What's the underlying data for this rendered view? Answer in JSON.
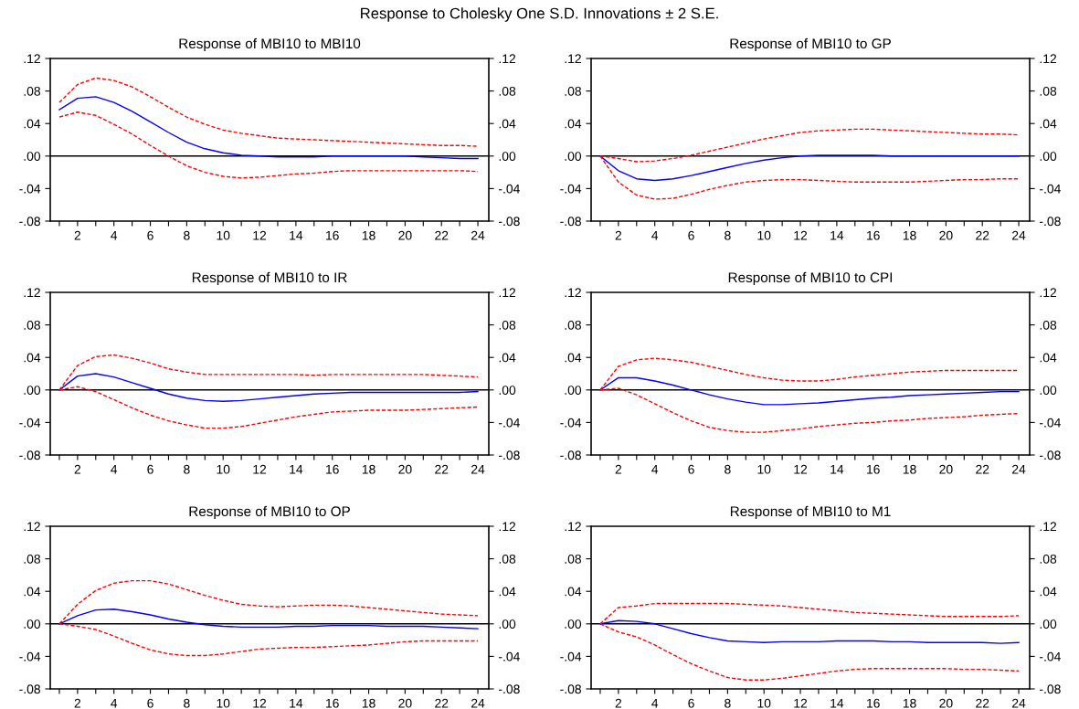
{
  "chart_data": [
    {
      "type": "line",
      "title": "Response of MBI10 to MBI10",
      "annotations": [
        "Response to Cholesky One S.D. Innovations ± 2 S.E."
      ],
      "x": [
        1,
        2,
        3,
        4,
        5,
        6,
        7,
        8,
        9,
        10,
        11,
        12,
        13,
        14,
        15,
        16,
        17,
        18,
        19,
        20,
        21,
        22,
        23,
        24
      ],
      "xlim": [
        0.5,
        24.6
      ],
      "xticks": [
        {
          "value": 1,
          "label": null
        },
        2,
        {
          "value": 3,
          "label": null
        },
        4,
        {
          "value": 5,
          "label": null
        },
        6,
        {
          "value": 7,
          "label": null
        },
        8,
        {
          "value": 9,
          "label": null
        },
        10,
        {
          "value": 11,
          "label": null
        },
        12,
        {
          "value": 13,
          "label": null
        },
        14,
        {
          "value": 15,
          "label": null
        },
        16,
        {
          "value": 17,
          "label": null
        },
        18,
        {
          "value": 19,
          "label": null
        },
        20,
        {
          "value": 21,
          "label": null
        },
        22,
        {
          "value": 23,
          "label": null
        },
        24
      ],
      "ylim": [
        -0.08,
        0.12
      ],
      "yticks": [
        {
          "value": -0.08,
          "label": "-.08"
        },
        {
          "value": -0.04,
          "label": "-.04"
        },
        {
          "value": 0,
          "label": ".00"
        },
        {
          "value": 0.04,
          "label": ".04"
        },
        {
          "value": 0.08,
          "label": ".08"
        },
        {
          "value": 0.12,
          "label": ".12"
        }
      ],
      "y2lim": [
        -0.08,
        0.12
      ],
      "y2ticks": [
        {
          "value": -0.08,
          "label": "-.08"
        },
        {
          "value": -0.04,
          "label": "-.04"
        },
        {
          "value": 0,
          "label": ".00"
        },
        {
          "value": 0.04,
          "label": ".04"
        },
        {
          "value": 0.08,
          "label": ".08"
        },
        {
          "value": 0.12,
          "label": ".12"
        }
      ],
      "ref_lines": [
        {
          "axis": "y",
          "value": 0,
          "color": "#000000"
        }
      ],
      "series": [
        {
          "color": "#0000ff",
          "line_style": "solid",
          "values": [
            0.057,
            0.071,
            0.073,
            0.066,
            0.055,
            0.042,
            0.029,
            0.017,
            0.009,
            0.004,
            0.001,
            0,
            -0.001,
            -0.001,
            -0.001,
            0,
            0,
            0,
            0,
            0,
            -0.001,
            -0.002,
            -0.003,
            -0.003
          ]
        },
        {
          "color": "#ff0000",
          "line_style": "dashed",
          "values": [
            0.066,
            0.088,
            0.096,
            0.093,
            0.085,
            0.073,
            0.06,
            0.048,
            0.039,
            0.032,
            0.028,
            0.025,
            0.022,
            0.021,
            0.02,
            0.019,
            0.018,
            0.017,
            0.016,
            0.015,
            0.014,
            0.013,
            0.013,
            0.012
          ]
        },
        {
          "color": "#ff0000",
          "line_style": "dashed",
          "values": [
            0.048,
            0.054,
            0.05,
            0.039,
            0.027,
            0.013,
            0,
            -0.012,
            -0.02,
            -0.025,
            -0.027,
            -0.026,
            -0.024,
            -0.022,
            -0.021,
            -0.019,
            -0.018,
            -0.018,
            -0.018,
            -0.018,
            -0.018,
            -0.018,
            -0.018,
            -0.019
          ]
        }
      ]
    },
    {
      "type": "line",
      "title": "Response of MBI10 to GP",
      "x": [
        1,
        2,
        3,
        4,
        5,
        6,
        7,
        8,
        9,
        10,
        11,
        12,
        13,
        14,
        15,
        16,
        17,
        18,
        19,
        20,
        21,
        22,
        23,
        24
      ],
      "xlim": [
        0.5,
        24.6
      ],
      "xticks": [
        {
          "value": 1,
          "label": null
        },
        2,
        {
          "value": 3,
          "label": null
        },
        4,
        {
          "value": 5,
          "label": null
        },
        6,
        {
          "value": 7,
          "label": null
        },
        8,
        {
          "value": 9,
          "label": null
        },
        10,
        {
          "value": 11,
          "label": null
        },
        12,
        {
          "value": 13,
          "label": null
        },
        14,
        {
          "value": 15,
          "label": null
        },
        16,
        {
          "value": 17,
          "label": null
        },
        18,
        {
          "value": 19,
          "label": null
        },
        20,
        {
          "value": 21,
          "label": null
        },
        22,
        {
          "value": 23,
          "label": null
        },
        24
      ],
      "ylim": [
        -0.08,
        0.12
      ],
      "yticks": [
        {
          "value": -0.08,
          "label": "-.08"
        },
        {
          "value": -0.04,
          "label": "-.04"
        },
        {
          "value": 0,
          "label": ".00"
        },
        {
          "value": 0.04,
          "label": ".04"
        },
        {
          "value": 0.08,
          "label": ".08"
        },
        {
          "value": 0.12,
          "label": ".12"
        }
      ],
      "y2lim": [
        -0.08,
        0.12
      ],
      "y2ticks": [
        {
          "value": -0.08,
          "label": "-.08"
        },
        {
          "value": -0.04,
          "label": "-.04"
        },
        {
          "value": 0,
          "label": ".00"
        },
        {
          "value": 0.04,
          "label": ".04"
        },
        {
          "value": 0.08,
          "label": ".08"
        },
        {
          "value": 0.12,
          "label": ".12"
        }
      ],
      "ref_lines": [
        {
          "axis": "y",
          "value": 0,
          "color": "#000000"
        }
      ],
      "series": [
        {
          "color": "#0000ff",
          "line_style": "solid",
          "values": [
            0,
            -0.018,
            -0.028,
            -0.03,
            -0.028,
            -0.024,
            -0.019,
            -0.014,
            -0.009,
            -0.005,
            -0.002,
            0,
            0.001,
            0.001,
            0.001,
            0.001,
            0,
            0,
            0,
            0,
            0,
            0,
            0,
            0
          ]
        },
        {
          "color": "#ff0000",
          "line_style": "dashed",
          "values": [
            0,
            -0.003,
            -0.007,
            -0.006,
            -0.003,
            0.001,
            0.006,
            0.011,
            0.016,
            0.021,
            0.025,
            0.029,
            0.031,
            0.032,
            0.033,
            0.033,
            0.032,
            0.031,
            0.03,
            0.029,
            0.028,
            0.027,
            0.027,
            0.026
          ]
        },
        {
          "color": "#ff0000",
          "line_style": "dashed",
          "values": [
            0,
            -0.032,
            -0.048,
            -0.053,
            -0.052,
            -0.047,
            -0.041,
            -0.036,
            -0.032,
            -0.03,
            -0.029,
            -0.029,
            -0.03,
            -0.031,
            -0.032,
            -0.032,
            -0.032,
            -0.032,
            -0.031,
            -0.03,
            -0.029,
            -0.029,
            -0.028,
            -0.028
          ]
        }
      ]
    },
    {
      "type": "line",
      "title": "Response of MBI10 to IR",
      "x": [
        1,
        2,
        3,
        4,
        5,
        6,
        7,
        8,
        9,
        10,
        11,
        12,
        13,
        14,
        15,
        16,
        17,
        18,
        19,
        20,
        21,
        22,
        23,
        24
      ],
      "xlim": [
        0.5,
        24.6
      ],
      "xticks": [
        {
          "value": 1,
          "label": null
        },
        2,
        {
          "value": 3,
          "label": null
        },
        4,
        {
          "value": 5,
          "label": null
        },
        6,
        {
          "value": 7,
          "label": null
        },
        8,
        {
          "value": 9,
          "label": null
        },
        10,
        {
          "value": 11,
          "label": null
        },
        12,
        {
          "value": 13,
          "label": null
        },
        14,
        {
          "value": 15,
          "label": null
        },
        16,
        {
          "value": 17,
          "label": null
        },
        18,
        {
          "value": 19,
          "label": null
        },
        20,
        {
          "value": 21,
          "label": null
        },
        22,
        {
          "value": 23,
          "label": null
        },
        24
      ],
      "ylim": [
        -0.08,
        0.12
      ],
      "yticks": [
        {
          "value": -0.08,
          "label": "-.08"
        },
        {
          "value": -0.04,
          "label": "-.04"
        },
        {
          "value": 0,
          "label": ".00"
        },
        {
          "value": 0.04,
          "label": ".04"
        },
        {
          "value": 0.08,
          "label": ".08"
        },
        {
          "value": 0.12,
          "label": ".12"
        }
      ],
      "y2lim": [
        -0.08,
        0.12
      ],
      "y2ticks": [
        {
          "value": -0.08,
          "label": "-.08"
        },
        {
          "value": -0.04,
          "label": "-.04"
        },
        {
          "value": 0,
          "label": ".00"
        },
        {
          "value": 0.04,
          "label": ".04"
        },
        {
          "value": 0.08,
          "label": ".08"
        },
        {
          "value": 0.12,
          "label": ".12"
        }
      ],
      "ref_lines": [
        {
          "axis": "y",
          "value": 0,
          "color": "#000000"
        }
      ],
      "series": [
        {
          "color": "#0000ff",
          "line_style": "solid",
          "values": [
            0,
            0.017,
            0.02,
            0.016,
            0.009,
            0.002,
            -0.005,
            -0.01,
            -0.013,
            -0.014,
            -0.013,
            -0.011,
            -0.009,
            -0.007,
            -0.005,
            -0.004,
            -0.003,
            -0.003,
            -0.003,
            -0.003,
            -0.003,
            -0.003,
            -0.003,
            -0.002
          ]
        },
        {
          "color": "#ff0000",
          "line_style": "dashed",
          "values": [
            0,
            0.03,
            0.041,
            0.043,
            0.039,
            0.033,
            0.026,
            0.022,
            0.019,
            0.019,
            0.019,
            0.019,
            0.019,
            0.019,
            0.018,
            0.019,
            0.019,
            0.019,
            0.019,
            0.019,
            0.019,
            0.018,
            0.017,
            0.016
          ]
        },
        {
          "color": "#ff0000",
          "line_style": "dashed",
          "values": [
            0,
            0.004,
            -0.002,
            -0.012,
            -0.022,
            -0.031,
            -0.038,
            -0.043,
            -0.047,
            -0.047,
            -0.045,
            -0.041,
            -0.037,
            -0.033,
            -0.03,
            -0.027,
            -0.026,
            -0.025,
            -0.025,
            -0.025,
            -0.024,
            -0.023,
            -0.022,
            -0.021
          ]
        }
      ]
    },
    {
      "type": "line",
      "title": "Response of MBI10 to CPI",
      "x": [
        1,
        2,
        3,
        4,
        5,
        6,
        7,
        8,
        9,
        10,
        11,
        12,
        13,
        14,
        15,
        16,
        17,
        18,
        19,
        20,
        21,
        22,
        23,
        24
      ],
      "xlim": [
        0.5,
        24.6
      ],
      "xticks": [
        {
          "value": 1,
          "label": null
        },
        2,
        {
          "value": 3,
          "label": null
        },
        4,
        {
          "value": 5,
          "label": null
        },
        6,
        {
          "value": 7,
          "label": null
        },
        8,
        {
          "value": 9,
          "label": null
        },
        10,
        {
          "value": 11,
          "label": null
        },
        12,
        {
          "value": 13,
          "label": null
        },
        14,
        {
          "value": 15,
          "label": null
        },
        16,
        {
          "value": 17,
          "label": null
        },
        18,
        {
          "value": 19,
          "label": null
        },
        20,
        {
          "value": 21,
          "label": null
        },
        22,
        {
          "value": 23,
          "label": null
        },
        24
      ],
      "ylim": [
        -0.08,
        0.12
      ],
      "yticks": [
        {
          "value": -0.08,
          "label": "-.08"
        },
        {
          "value": -0.04,
          "label": "-.04"
        },
        {
          "value": 0,
          "label": ".00"
        },
        {
          "value": 0.04,
          "label": ".04"
        },
        {
          "value": 0.08,
          "label": ".08"
        },
        {
          "value": 0.12,
          "label": ".12"
        }
      ],
      "y2lim": [
        -0.08,
        0.12
      ],
      "y2ticks": [
        {
          "value": -0.08,
          "label": "-.08"
        },
        {
          "value": -0.04,
          "label": "-.04"
        },
        {
          "value": 0,
          "label": ".00"
        },
        {
          "value": 0.04,
          "label": ".04"
        },
        {
          "value": 0.08,
          "label": ".08"
        },
        {
          "value": 0.12,
          "label": ".12"
        }
      ],
      "ref_lines": [
        {
          "axis": "y",
          "value": 0,
          "color": "#000000"
        }
      ],
      "series": [
        {
          "color": "#0000ff",
          "line_style": "solid",
          "values": [
            0,
            0.015,
            0.015,
            0.011,
            0.006,
            0,
            -0.006,
            -0.011,
            -0.015,
            -0.018,
            -0.018,
            -0.017,
            -0.016,
            -0.014,
            -0.012,
            -0.01,
            -0.009,
            -0.007,
            -0.006,
            -0.005,
            -0.004,
            -0.003,
            -0.002,
            -0.002
          ]
        },
        {
          "color": "#ff0000",
          "line_style": "dashed",
          "values": [
            0,
            0.029,
            0.037,
            0.039,
            0.037,
            0.034,
            0.029,
            0.024,
            0.019,
            0.015,
            0.012,
            0.011,
            0.011,
            0.013,
            0.016,
            0.018,
            0.02,
            0.022,
            0.023,
            0.024,
            0.024,
            0.024,
            0.024,
            0.024
          ]
        },
        {
          "color": "#ff0000",
          "line_style": "dashed",
          "values": [
            0,
            0.002,
            -0.006,
            -0.017,
            -0.028,
            -0.038,
            -0.046,
            -0.05,
            -0.052,
            -0.052,
            -0.05,
            -0.048,
            -0.045,
            -0.043,
            -0.041,
            -0.04,
            -0.038,
            -0.037,
            -0.035,
            -0.034,
            -0.033,
            -0.031,
            -0.03,
            -0.029
          ]
        }
      ]
    },
    {
      "type": "line",
      "title": "Response of MBI10 to OP",
      "x": [
        1,
        2,
        3,
        4,
        5,
        6,
        7,
        8,
        9,
        10,
        11,
        12,
        13,
        14,
        15,
        16,
        17,
        18,
        19,
        20,
        21,
        22,
        23,
        24
      ],
      "xlim": [
        0.5,
        24.6
      ],
      "xticks": [
        {
          "value": 1,
          "label": null
        },
        2,
        {
          "value": 3,
          "label": null
        },
        4,
        {
          "value": 5,
          "label": null
        },
        6,
        {
          "value": 7,
          "label": null
        },
        8,
        {
          "value": 9,
          "label": null
        },
        10,
        {
          "value": 11,
          "label": null
        },
        12,
        {
          "value": 13,
          "label": null
        },
        14,
        {
          "value": 15,
          "label": null
        },
        16,
        {
          "value": 17,
          "label": null
        },
        18,
        {
          "value": 19,
          "label": null
        },
        20,
        {
          "value": 21,
          "label": null
        },
        22,
        {
          "value": 23,
          "label": null
        },
        24
      ],
      "ylim": [
        -0.08,
        0.12
      ],
      "yticks": [
        {
          "value": -0.08,
          "label": "-.08"
        },
        {
          "value": -0.04,
          "label": "-.04"
        },
        {
          "value": 0,
          "label": ".00"
        },
        {
          "value": 0.04,
          "label": ".04"
        },
        {
          "value": 0.08,
          "label": ".08"
        },
        {
          "value": 0.12,
          "label": ".12"
        }
      ],
      "y2lim": [
        -0.08,
        0.12
      ],
      "y2ticks": [
        {
          "value": -0.08,
          "label": "-.08"
        },
        {
          "value": -0.04,
          "label": "-.04"
        },
        {
          "value": 0,
          "label": ".00"
        },
        {
          "value": 0.04,
          "label": ".04"
        },
        {
          "value": 0.08,
          "label": ".08"
        },
        {
          "value": 0.12,
          "label": ".12"
        }
      ],
      "ref_lines": [
        {
          "axis": "y",
          "value": 0,
          "color": "#000000"
        }
      ],
      "series": [
        {
          "color": "#0000ff",
          "line_style": "solid",
          "values": [
            0,
            0.01,
            0.017,
            0.018,
            0.015,
            0.011,
            0.006,
            0.002,
            -0.001,
            -0.003,
            -0.004,
            -0.004,
            -0.004,
            -0.003,
            -0.003,
            -0.002,
            -0.002,
            -0.002,
            -0.003,
            -0.003,
            -0.003,
            -0.004,
            -0.005,
            -0.006
          ]
        },
        {
          "color": "#ff0000",
          "line_style": "dashed",
          "values": [
            0,
            0.024,
            0.041,
            0.05,
            0.053,
            0.053,
            0.049,
            0.042,
            0.035,
            0.029,
            0.024,
            0.022,
            0.021,
            0.022,
            0.023,
            0.023,
            0.022,
            0.02,
            0.018,
            0.016,
            0.014,
            0.012,
            0.011,
            0.01
          ]
        },
        {
          "color": "#ff0000",
          "line_style": "dashed",
          "values": [
            0,
            -0.003,
            -0.007,
            -0.015,
            -0.024,
            -0.032,
            -0.037,
            -0.039,
            -0.039,
            -0.037,
            -0.034,
            -0.031,
            -0.03,
            -0.029,
            -0.029,
            -0.028,
            -0.027,
            -0.026,
            -0.024,
            -0.022,
            -0.021,
            -0.021,
            -0.021,
            -0.021
          ]
        }
      ]
    },
    {
      "type": "line",
      "title": "Response of MBI10 to M1",
      "x": [
        1,
        2,
        3,
        4,
        5,
        6,
        7,
        8,
        9,
        10,
        11,
        12,
        13,
        14,
        15,
        16,
        17,
        18,
        19,
        20,
        21,
        22,
        23,
        24
      ],
      "xlim": [
        0.5,
        24.6
      ],
      "xticks": [
        {
          "value": 1,
          "label": null
        },
        2,
        {
          "value": 3,
          "label": null
        },
        4,
        {
          "value": 5,
          "label": null
        },
        6,
        {
          "value": 7,
          "label": null
        },
        8,
        {
          "value": 9,
          "label": null
        },
        10,
        {
          "value": 11,
          "label": null
        },
        12,
        {
          "value": 13,
          "label": null
        },
        14,
        {
          "value": 15,
          "label": null
        },
        16,
        {
          "value": 17,
          "label": null
        },
        18,
        {
          "value": 19,
          "label": null
        },
        20,
        {
          "value": 21,
          "label": null
        },
        22,
        {
          "value": 23,
          "label": null
        },
        24
      ],
      "ylim": [
        -0.08,
        0.12
      ],
      "yticks": [
        {
          "value": -0.08,
          "label": "-.08"
        },
        {
          "value": -0.04,
          "label": "-.04"
        },
        {
          "value": 0,
          "label": ".00"
        },
        {
          "value": 0.04,
          "label": ".04"
        },
        {
          "value": 0.08,
          "label": ".08"
        },
        {
          "value": 0.12,
          "label": ".12"
        }
      ],
      "y2lim": [
        -0.08,
        0.12
      ],
      "y2ticks": [
        {
          "value": -0.08,
          "label": "-.08"
        },
        {
          "value": -0.04,
          "label": "-.04"
        },
        {
          "value": 0,
          "label": ".00"
        },
        {
          "value": 0.04,
          "label": ".04"
        },
        {
          "value": 0.08,
          "label": ".08"
        },
        {
          "value": 0.12,
          "label": ".12"
        }
      ],
      "ref_lines": [
        {
          "axis": "y",
          "value": 0,
          "color": "#000000"
        }
      ],
      "series": [
        {
          "color": "#0000ff",
          "line_style": "solid",
          "values": [
            0,
            0.004,
            0.003,
            0,
            -0.006,
            -0.012,
            -0.017,
            -0.021,
            -0.022,
            -0.023,
            -0.022,
            -0.022,
            -0.022,
            -0.021,
            -0.021,
            -0.021,
            -0.022,
            -0.022,
            -0.023,
            -0.023,
            -0.023,
            -0.023,
            -0.024,
            -0.023
          ]
        },
        {
          "color": "#ff0000",
          "line_style": "dashed",
          "values": [
            0,
            0.02,
            0.022,
            0.025,
            0.025,
            0.025,
            0.025,
            0.025,
            0.024,
            0.023,
            0.022,
            0.02,
            0.018,
            0.016,
            0.014,
            0.013,
            0.012,
            0.011,
            0.01,
            0.009,
            0.009,
            0.009,
            0.009,
            0.01
          ]
        },
        {
          "color": "#ff0000",
          "line_style": "dashed",
          "values": [
            0,
            -0.01,
            -0.016,
            -0.026,
            -0.038,
            -0.049,
            -0.058,
            -0.066,
            -0.069,
            -0.069,
            -0.067,
            -0.064,
            -0.061,
            -0.058,
            -0.056,
            -0.055,
            -0.055,
            -0.055,
            -0.055,
            -0.055,
            -0.056,
            -0.056,
            -0.057,
            -0.058
          ]
        }
      ]
    }
  ]
}
